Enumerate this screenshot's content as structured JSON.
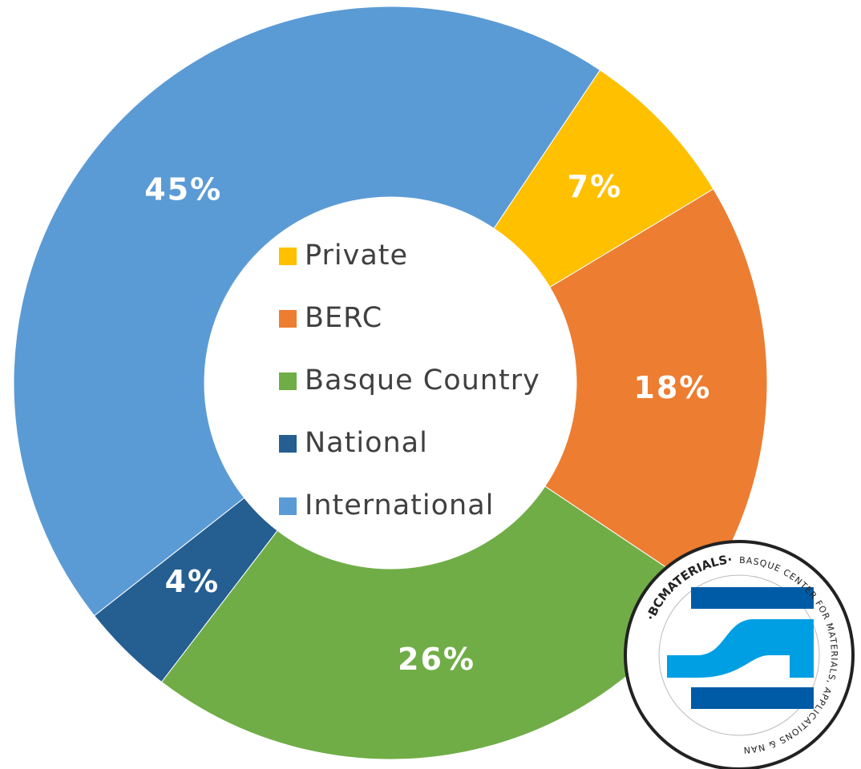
{
  "chart_data": {
    "type": "donut",
    "categories": [
      "Private",
      "BERC",
      "Basque Country",
      "National",
      "International"
    ],
    "values": [
      7,
      18,
      26,
      4,
      45
    ],
    "value_labels": [
      "7%",
      "18%",
      "26%",
      "4%",
      "45%"
    ],
    "colors": [
      "#ffc000",
      "#ed7d31",
      "#70ad47",
      "#255e91",
      "#5b9bd5"
    ],
    "legend": "center"
  },
  "logo": {
    "name": "·BCMATERIALS·",
    "tagline": "BASQUE CENTER FOR MATERIALS, APPLICATIONS & NANOSTRUCTURES"
  }
}
